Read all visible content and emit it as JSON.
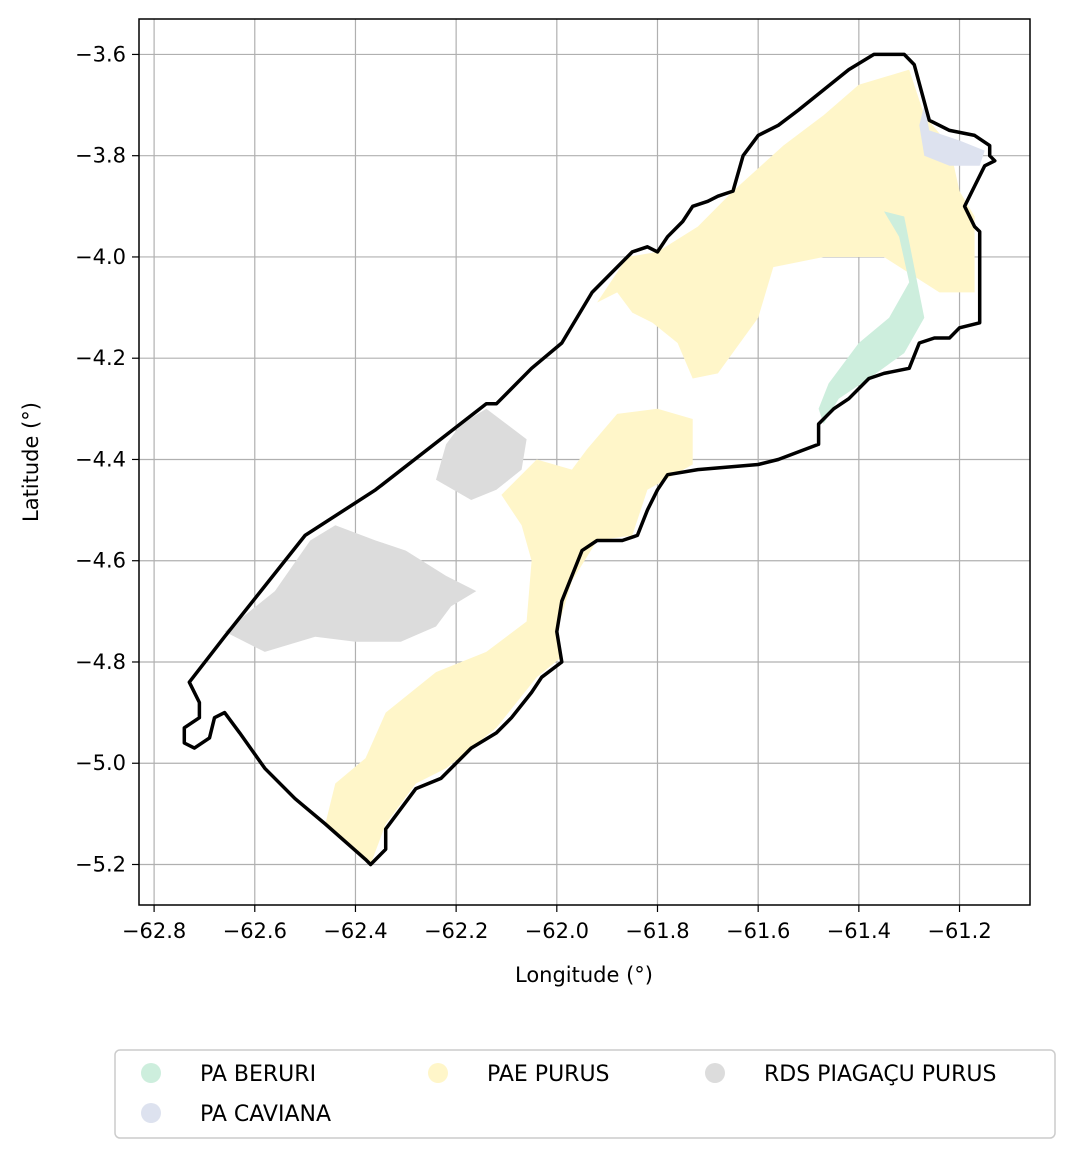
{
  "chart_data": {
    "type": "map",
    "xlabel": "Longitude (°)",
    "ylabel": "Latitude (°)",
    "xlim": [
      -62.83,
      -61.06
    ],
    "ylim": [
      -5.28,
      -3.53
    ],
    "x_ticks": [
      -62.8,
      -62.6,
      -62.4,
      -62.2,
      -62.0,
      -61.8,
      -61.6,
      -61.4,
      -61.2
    ],
    "x_tick_labels": [
      "−62.8",
      "−62.6",
      "−62.4",
      "−62.2",
      "−62.0",
      "−61.8",
      "−61.6",
      "−61.4",
      "−61.2"
    ],
    "y_ticks": [
      -3.6,
      -3.8,
      -4.0,
      -4.2,
      -4.4,
      -4.6,
      -4.8,
      -5.0,
      -5.2
    ],
    "y_tick_labels": [
      "−3.6",
      "−3.8",
      "−4.0",
      "−4.2",
      "−4.4",
      "−4.6",
      "−4.8",
      "−5.0",
      "−5.2"
    ],
    "grid": true,
    "legend_position": "bottom",
    "legend": [
      {
        "label": "PA BERURI",
        "color": "#cdeedd"
      },
      {
        "label": "PA CAVIANA",
        "color": "#dde2ef"
      },
      {
        "label": "PAE PURUS",
        "color": "#fff6c9"
      },
      {
        "label": "RDS PIAGAÇU PURUS",
        "color": "#dcdcdc"
      }
    ],
    "boundary": [
      [
        -62.73,
        -4.84
      ],
      [
        -62.66,
        -4.75
      ],
      [
        -62.5,
        -4.55
      ],
      [
        -62.36,
        -4.46
      ],
      [
        -62.14,
        -4.29
      ],
      [
        -62.12,
        -4.29
      ],
      [
        -62.05,
        -4.22
      ],
      [
        -61.99,
        -4.17
      ],
      [
        -61.93,
        -4.07
      ],
      [
        -61.89,
        -4.03
      ],
      [
        -61.85,
        -3.99
      ],
      [
        -61.82,
        -3.98
      ],
      [
        -61.8,
        -3.99
      ],
      [
        -61.78,
        -3.96
      ],
      [
        -61.75,
        -3.93
      ],
      [
        -61.73,
        -3.9
      ],
      [
        -61.7,
        -3.89
      ],
      [
        -61.68,
        -3.88
      ],
      [
        -61.65,
        -3.87
      ],
      [
        -61.63,
        -3.8
      ],
      [
        -61.6,
        -3.76
      ],
      [
        -61.56,
        -3.74
      ],
      [
        -61.52,
        -3.71
      ],
      [
        -61.47,
        -3.67
      ],
      [
        -61.42,
        -3.63
      ],
      [
        -61.37,
        -3.6
      ],
      [
        -61.31,
        -3.6
      ],
      [
        -61.29,
        -3.62
      ],
      [
        -61.26,
        -3.73
      ],
      [
        -61.22,
        -3.75
      ],
      [
        -61.17,
        -3.76
      ],
      [
        -61.14,
        -3.78
      ],
      [
        -61.14,
        -3.8
      ],
      [
        -61.13,
        -3.81
      ],
      [
        -61.15,
        -3.82
      ],
      [
        -61.17,
        -3.86
      ],
      [
        -61.19,
        -3.9
      ],
      [
        -61.17,
        -3.94
      ],
      [
        -61.16,
        -3.95
      ],
      [
        -61.16,
        -4.13
      ],
      [
        -61.2,
        -4.14
      ],
      [
        -61.22,
        -4.16
      ],
      [
        -61.25,
        -4.16
      ],
      [
        -61.28,
        -4.17
      ],
      [
        -61.3,
        -4.22
      ],
      [
        -61.35,
        -4.23
      ],
      [
        -61.38,
        -4.24
      ],
      [
        -61.42,
        -4.28
      ],
      [
        -61.45,
        -4.3
      ],
      [
        -61.48,
        -4.33
      ],
      [
        -61.48,
        -4.37
      ],
      [
        -61.56,
        -4.4
      ],
      [
        -61.6,
        -4.41
      ],
      [
        -61.72,
        -4.42
      ],
      [
        -61.78,
        -4.43
      ],
      [
        -61.8,
        -4.46
      ],
      [
        -61.82,
        -4.5
      ],
      [
        -61.84,
        -4.55
      ],
      [
        -61.87,
        -4.56
      ],
      [
        -61.92,
        -4.56
      ],
      [
        -61.95,
        -4.58
      ],
      [
        -61.97,
        -4.63
      ],
      [
        -61.99,
        -4.68
      ],
      [
        -62.0,
        -4.74
      ],
      [
        -61.99,
        -4.8
      ],
      [
        -62.03,
        -4.83
      ],
      [
        -62.05,
        -4.86
      ],
      [
        -62.09,
        -4.91
      ],
      [
        -62.12,
        -4.94
      ],
      [
        -62.17,
        -4.97
      ],
      [
        -62.23,
        -5.03
      ],
      [
        -62.28,
        -5.05
      ],
      [
        -62.31,
        -5.09
      ],
      [
        -62.34,
        -5.13
      ],
      [
        -62.34,
        -5.17
      ],
      [
        -62.37,
        -5.2
      ],
      [
        -62.38,
        -5.19
      ],
      [
        -62.46,
        -5.12
      ],
      [
        -62.52,
        -5.07
      ],
      [
        -62.58,
        -5.01
      ],
      [
        -62.63,
        -4.94
      ],
      [
        -62.66,
        -4.9
      ],
      [
        -62.68,
        -4.91
      ],
      [
        -62.69,
        -4.95
      ],
      [
        -62.72,
        -4.97
      ],
      [
        -62.74,
        -4.96
      ],
      [
        -62.74,
        -4.93
      ],
      [
        -62.71,
        -4.91
      ],
      [
        -62.71,
        -4.88
      ],
      [
        -62.73,
        -4.84
      ]
    ],
    "regions": [
      {
        "name": "PAE PURUS",
        "color": "#fff6c9",
        "polygon": [
          [
            -61.8,
            -3.99
          ],
          [
            -61.72,
            -3.94
          ],
          [
            -61.65,
            -3.87
          ],
          [
            -61.55,
            -3.78
          ],
          [
            -61.47,
            -3.72
          ],
          [
            -61.4,
            -3.66
          ],
          [
            -61.3,
            -3.63
          ],
          [
            -61.27,
            -3.72
          ],
          [
            -61.22,
            -3.78
          ],
          [
            -61.2,
            -3.87
          ],
          [
            -61.17,
            -3.92
          ],
          [
            -61.17,
            -4.07
          ],
          [
            -61.24,
            -4.07
          ],
          [
            -61.35,
            -4.0
          ],
          [
            -61.47,
            -4.0
          ],
          [
            -61.57,
            -4.02
          ],
          [
            -61.6,
            -4.12
          ],
          [
            -61.68,
            -4.23
          ],
          [
            -61.73,
            -4.24
          ],
          [
            -61.76,
            -4.17
          ],
          [
            -61.81,
            -4.13
          ],
          [
            -61.85,
            -4.11
          ],
          [
            -61.88,
            -4.07
          ],
          [
            -61.92,
            -4.09
          ],
          [
            -61.86,
            -4.0
          ],
          [
            -61.8,
            -3.99
          ]
        ]
      },
      {
        "name": "PAE PURUS",
        "color": "#fff6c9",
        "polygon": [
          [
            -61.88,
            -4.31
          ],
          [
            -61.8,
            -4.3
          ],
          [
            -61.73,
            -4.32
          ],
          [
            -61.73,
            -4.41
          ],
          [
            -61.82,
            -4.46
          ],
          [
            -61.85,
            -4.55
          ],
          [
            -61.92,
            -4.56
          ],
          [
            -61.97,
            -4.64
          ],
          [
            -62.0,
            -4.74
          ],
          [
            -61.99,
            -4.79
          ],
          [
            -62.04,
            -4.83
          ],
          [
            -62.12,
            -4.93
          ],
          [
            -62.22,
            -5.01
          ],
          [
            -62.28,
            -5.04
          ],
          [
            -62.34,
            -5.12
          ],
          [
            -62.37,
            -5.2
          ],
          [
            -62.46,
            -5.12
          ],
          [
            -62.44,
            -5.04
          ],
          [
            -62.38,
            -4.99
          ],
          [
            -62.34,
            -4.9
          ],
          [
            -62.24,
            -4.82
          ],
          [
            -62.14,
            -4.78
          ],
          [
            -62.06,
            -4.72
          ],
          [
            -62.05,
            -4.6
          ],
          [
            -62.07,
            -4.53
          ],
          [
            -62.11,
            -4.47
          ],
          [
            -62.04,
            -4.4
          ],
          [
            -61.97,
            -4.42
          ],
          [
            -61.94,
            -4.38
          ],
          [
            -61.88,
            -4.31
          ]
        ]
      },
      {
        "name": "PA BERURI",
        "color": "#cdeedd",
        "polygon": [
          [
            -61.35,
            -3.91
          ],
          [
            -61.31,
            -3.92
          ],
          [
            -61.29,
            -4.02
          ],
          [
            -61.27,
            -4.12
          ],
          [
            -61.31,
            -4.19
          ],
          [
            -61.38,
            -4.24
          ],
          [
            -61.44,
            -4.28
          ],
          [
            -61.47,
            -4.33
          ],
          [
            -61.48,
            -4.3
          ],
          [
            -61.46,
            -4.25
          ],
          [
            -61.4,
            -4.17
          ],
          [
            -61.34,
            -4.12
          ],
          [
            -61.3,
            -4.05
          ],
          [
            -61.32,
            -3.96
          ],
          [
            -61.35,
            -3.91
          ]
        ]
      },
      {
        "name": "PA CAVIANA",
        "color": "#dde2ef",
        "polygon": [
          [
            -61.27,
            -3.7
          ],
          [
            -61.26,
            -3.75
          ],
          [
            -61.2,
            -3.77
          ],
          [
            -61.15,
            -3.79
          ],
          [
            -61.16,
            -3.82
          ],
          [
            -61.22,
            -3.82
          ],
          [
            -61.27,
            -3.8
          ],
          [
            -61.28,
            -3.74
          ],
          [
            -61.27,
            -3.7
          ]
        ]
      },
      {
        "name": "RDS PIAGAÇU PURUS",
        "color": "#dcdcdc",
        "polygon": [
          [
            -62.14,
            -4.3
          ],
          [
            -62.1,
            -4.33
          ],
          [
            -62.06,
            -4.36
          ],
          [
            -62.07,
            -4.42
          ],
          [
            -62.12,
            -4.46
          ],
          [
            -62.17,
            -4.48
          ],
          [
            -62.24,
            -4.44
          ],
          [
            -62.22,
            -4.37
          ],
          [
            -62.19,
            -4.33
          ],
          [
            -62.14,
            -4.3
          ]
        ]
      },
      {
        "name": "RDS PIAGAÇU PURUS",
        "color": "#dcdcdc",
        "polygon": [
          [
            -62.44,
            -4.53
          ],
          [
            -62.36,
            -4.56
          ],
          [
            -62.3,
            -4.58
          ],
          [
            -62.22,
            -4.63
          ],
          [
            -62.16,
            -4.66
          ],
          [
            -62.21,
            -4.69
          ],
          [
            -62.24,
            -4.73
          ],
          [
            -62.31,
            -4.76
          ],
          [
            -62.4,
            -4.76
          ],
          [
            -62.48,
            -4.75
          ],
          [
            -62.58,
            -4.78
          ],
          [
            -62.66,
            -4.74
          ],
          [
            -62.56,
            -4.66
          ],
          [
            -62.49,
            -4.56
          ],
          [
            -62.44,
            -4.53
          ]
        ]
      }
    ]
  }
}
